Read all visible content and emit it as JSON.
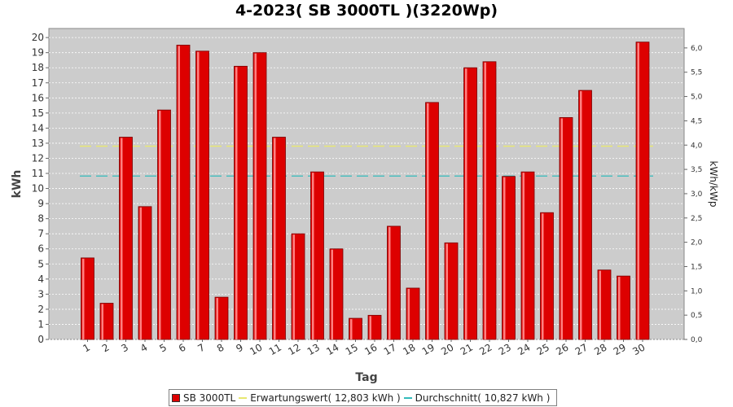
{
  "chart_data": {
    "type": "bar",
    "title": "4-2023( SB 3000TL )(3220Wp)",
    "xlabel": "Tag",
    "ylabel": "kWh",
    "y2label": "kWh/kWp",
    "ylim": [
      0,
      20.6
    ],
    "y2lim": [
      0,
      6.4
    ],
    "yticks": [
      0,
      1,
      2,
      3,
      4,
      5,
      6,
      7,
      8,
      9,
      10,
      11,
      12,
      13,
      14,
      15,
      16,
      17,
      18,
      19,
      20
    ],
    "y2ticks": [
      "0,0",
      "0,5",
      "1,0",
      "1,5",
      "2,0",
      "2,5",
      "3,0",
      "3,5",
      "4,0",
      "4,5",
      "5,0",
      "5,5",
      "6,0"
    ],
    "y2tick_values": [
      0,
      0.5,
      1,
      1.5,
      2,
      2.5,
      3,
      3.5,
      4,
      4.5,
      5,
      5.5,
      6
    ],
    "categories": [
      "1",
      "2",
      "3",
      "4",
      "5",
      "6",
      "7",
      "8",
      "9",
      "10",
      "11",
      "12",
      "13",
      "14",
      "15",
      "16",
      "17",
      "18",
      "19",
      "20",
      "21",
      "22",
      "23",
      "24",
      "25",
      "26",
      "27",
      "28",
      "29",
      "30"
    ],
    "series": [
      {
        "name": "SB 3000TL",
        "values": [
          5.4,
          2.4,
          13.4,
          8.8,
          15.2,
          19.5,
          19.1,
          2.8,
          18.1,
          19.0,
          13.4,
          7.0,
          11.1,
          6.0,
          1.4,
          1.6,
          7.5,
          3.4,
          15.7,
          6.4,
          18.0,
          18.4,
          10.8,
          11.1,
          8.4,
          14.7,
          16.5,
          4.6,
          4.2,
          19.7
        ],
        "color": "#dd0000"
      }
    ],
    "reference_lines": [
      {
        "name": "Erwartungswert",
        "value": 12.803,
        "color": "#e8e870"
      },
      {
        "name": "Durchschnitt",
        "value": 10.827,
        "color": "#33bbbb"
      }
    ],
    "grid": true,
    "legend_position": "bottom-center",
    "plot_background": "#cccccc"
  },
  "legend": {
    "series_label": "SB 3000TL",
    "expected_label": "Erwartungswert( 12,803 kWh )",
    "average_label": "Durchschnitt( 10,827 kWh )"
  }
}
